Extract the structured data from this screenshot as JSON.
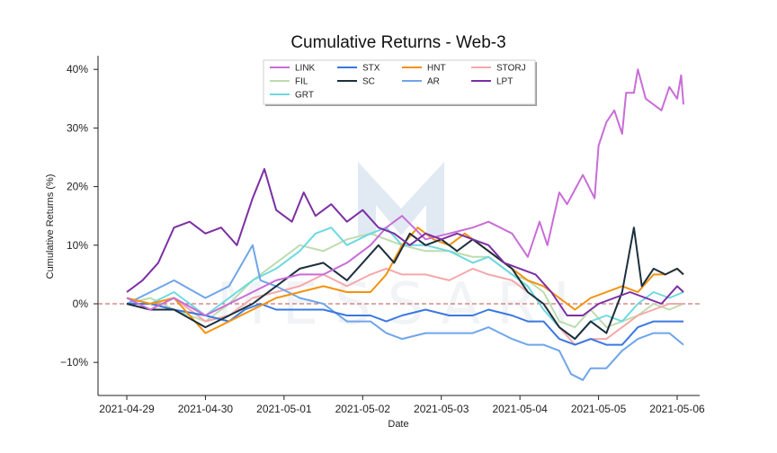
{
  "chart_data": {
    "type": "line",
    "title": "Cumulative Returns - Web-3",
    "xlabel": "Date",
    "ylabel": "Cumulative Returns (%)",
    "x_ticks": [
      "2021-04-29",
      "2021-04-30",
      "2021-05-01",
      "2021-05-02",
      "2021-05-03",
      "2021-05-04",
      "2021-05-05",
      "2021-05-06"
    ],
    "y_ticks": [
      -10,
      0,
      10,
      20,
      30,
      40
    ],
    "y_tick_labels": [
      "−10%",
      "0%",
      "10%",
      "20%",
      "30%",
      "40%"
    ],
    "xlim": [
      "2021-04-29",
      "2021-05-06"
    ],
    "ylim": [
      -15.5,
      43
    ],
    "reference_line": {
      "y": 0,
      "style": "dashed",
      "color": "#c0504d"
    },
    "grid": false,
    "legend_position": "top-center",
    "watermark": "MESSARI",
    "x_unit": "days",
    "series": [
      {
        "name": "LINK",
        "color": "#c86dd7",
        "points": [
          [
            0.0,
            1
          ],
          [
            0.3,
            -1
          ],
          [
            0.6,
            1
          ],
          [
            1.0,
            -2
          ],
          [
            1.3,
            0
          ],
          [
            1.6,
            2
          ],
          [
            1.9,
            4
          ],
          [
            2.2,
            5
          ],
          [
            2.5,
            5
          ],
          [
            2.8,
            7
          ],
          [
            3.1,
            10
          ],
          [
            3.3,
            13
          ],
          [
            3.5,
            15
          ],
          [
            3.8,
            11
          ],
          [
            4.1,
            12
          ],
          [
            4.4,
            13
          ],
          [
            4.6,
            14
          ],
          [
            4.9,
            12
          ],
          [
            5.1,
            8
          ],
          [
            5.25,
            14
          ],
          [
            5.35,
            10
          ],
          [
            5.5,
            19
          ],
          [
            5.6,
            17
          ],
          [
            5.8,
            22
          ],
          [
            5.95,
            18
          ],
          [
            6.0,
            27
          ],
          [
            6.1,
            31
          ],
          [
            6.2,
            33
          ],
          [
            6.3,
            29
          ],
          [
            6.35,
            36
          ],
          [
            6.45,
            36
          ],
          [
            6.5,
            40
          ],
          [
            6.6,
            35
          ],
          [
            6.8,
            33
          ],
          [
            6.9,
            37
          ],
          [
            7.0,
            35
          ],
          [
            7.05,
            39
          ],
          [
            7.08,
            34
          ]
        ]
      },
      {
        "name": "FIL",
        "color": "#bddcae",
        "points": [
          [
            0.0,
            0
          ],
          [
            0.3,
            1
          ],
          [
            0.6,
            -1
          ],
          [
            1.0,
            -3
          ],
          [
            1.3,
            0
          ],
          [
            1.6,
            4
          ],
          [
            1.9,
            7
          ],
          [
            2.2,
            10
          ],
          [
            2.5,
            9
          ],
          [
            2.8,
            11
          ],
          [
            3.1,
            12
          ],
          [
            3.3,
            11
          ],
          [
            3.5,
            10
          ],
          [
            3.8,
            9
          ],
          [
            4.1,
            9
          ],
          [
            4.4,
            8
          ],
          [
            4.6,
            8
          ],
          [
            4.9,
            5
          ],
          [
            5.1,
            4
          ],
          [
            5.3,
            2
          ],
          [
            5.5,
            -3
          ],
          [
            5.7,
            -4
          ],
          [
            5.9,
            -1
          ],
          [
            6.1,
            -4
          ],
          [
            6.3,
            -3
          ],
          [
            6.5,
            -2
          ],
          [
            6.7,
            0
          ],
          [
            6.9,
            -1
          ],
          [
            7.08,
            0
          ]
        ]
      },
      {
        "name": "GRT",
        "color": "#6dd9e0",
        "points": [
          [
            0.0,
            0
          ],
          [
            0.3,
            0
          ],
          [
            0.6,
            2
          ],
          [
            1.0,
            -2
          ],
          [
            1.3,
            1
          ],
          [
            1.6,
            4
          ],
          [
            1.9,
            6
          ],
          [
            2.2,
            9
          ],
          [
            2.4,
            12
          ],
          [
            2.6,
            13
          ],
          [
            2.8,
            10
          ],
          [
            3.1,
            12
          ],
          [
            3.3,
            13
          ],
          [
            3.5,
            10
          ],
          [
            3.8,
            10
          ],
          [
            4.1,
            9
          ],
          [
            4.4,
            7
          ],
          [
            4.6,
            8
          ],
          [
            4.9,
            5
          ],
          [
            5.1,
            3
          ],
          [
            5.3,
            -1
          ],
          [
            5.5,
            -4
          ],
          [
            5.7,
            -6
          ],
          [
            5.9,
            -3
          ],
          [
            6.1,
            -2
          ],
          [
            6.3,
            -3
          ],
          [
            6.5,
            0
          ],
          [
            6.7,
            2
          ],
          [
            6.9,
            1
          ],
          [
            7.08,
            2
          ]
        ]
      },
      {
        "name": "STX",
        "color": "#3a78e0",
        "points": [
          [
            0.0,
            0
          ],
          [
            0.3,
            0
          ],
          [
            0.6,
            -1
          ],
          [
            1.0,
            -2
          ],
          [
            1.3,
            -3
          ],
          [
            1.5,
            -1
          ],
          [
            1.7,
            0
          ],
          [
            1.9,
            -1
          ],
          [
            2.2,
            -1
          ],
          [
            2.5,
            -1
          ],
          [
            2.8,
            -2
          ],
          [
            3.1,
            -2
          ],
          [
            3.3,
            -3
          ],
          [
            3.5,
            -2
          ],
          [
            3.8,
            -1
          ],
          [
            4.1,
            -2
          ],
          [
            4.4,
            -2
          ],
          [
            4.6,
            -1
          ],
          [
            4.9,
            -2
          ],
          [
            5.1,
            -3
          ],
          [
            5.3,
            -3
          ],
          [
            5.5,
            -6
          ],
          [
            5.7,
            -7
          ],
          [
            5.9,
            -6
          ],
          [
            6.1,
            -7
          ],
          [
            6.3,
            -7
          ],
          [
            6.5,
            -4
          ],
          [
            6.7,
            -3
          ],
          [
            6.9,
            -3
          ],
          [
            7.08,
            -3
          ]
        ]
      },
      {
        "name": "SC",
        "color": "#1c2f3d",
        "points": [
          [
            0.0,
            0
          ],
          [
            0.3,
            -1
          ],
          [
            0.6,
            -1
          ],
          [
            1.0,
            -4
          ],
          [
            1.3,
            -2
          ],
          [
            1.6,
            0
          ],
          [
            1.9,
            3
          ],
          [
            2.2,
            6
          ],
          [
            2.5,
            7
          ],
          [
            2.8,
            4
          ],
          [
            3.0,
            7
          ],
          [
            3.2,
            10
          ],
          [
            3.4,
            7
          ],
          [
            3.6,
            12
          ],
          [
            3.8,
            10
          ],
          [
            4.0,
            11
          ],
          [
            4.2,
            9
          ],
          [
            4.4,
            11
          ],
          [
            4.6,
            9
          ],
          [
            4.9,
            6
          ],
          [
            5.1,
            2
          ],
          [
            5.3,
            0
          ],
          [
            5.5,
            -4
          ],
          [
            5.7,
            -6
          ],
          [
            5.9,
            -3
          ],
          [
            6.1,
            -5
          ],
          [
            6.3,
            2
          ],
          [
            6.45,
            13
          ],
          [
            6.55,
            3
          ],
          [
            6.7,
            6
          ],
          [
            6.85,
            5
          ],
          [
            7.0,
            6
          ],
          [
            7.08,
            5
          ]
        ]
      },
      {
        "name": "AR",
        "color": "#6fa5ea",
        "points": [
          [
            0.0,
            0
          ],
          [
            0.3,
            2
          ],
          [
            0.6,
            4
          ],
          [
            1.0,
            1
          ],
          [
            1.3,
            3
          ],
          [
            1.6,
            10
          ],
          [
            1.7,
            4
          ],
          [
            1.9,
            3
          ],
          [
            2.2,
            1
          ],
          [
            2.5,
            0
          ],
          [
            2.8,
            -3
          ],
          [
            3.1,
            -3
          ],
          [
            3.3,
            -5
          ],
          [
            3.5,
            -6
          ],
          [
            3.8,
            -5
          ],
          [
            4.1,
            -5
          ],
          [
            4.4,
            -5
          ],
          [
            4.6,
            -4
          ],
          [
            4.9,
            -6
          ],
          [
            5.1,
            -7
          ],
          [
            5.3,
            -7
          ],
          [
            5.5,
            -8
          ],
          [
            5.65,
            -12
          ],
          [
            5.8,
            -13
          ],
          [
            5.9,
            -11
          ],
          [
            6.1,
            -11
          ],
          [
            6.3,
            -8
          ],
          [
            6.5,
            -6
          ],
          [
            6.7,
            -5
          ],
          [
            6.9,
            -5
          ],
          [
            7.08,
            -7
          ]
        ]
      },
      {
        "name": "HNT",
        "color": "#f3920f",
        "points": [
          [
            0.0,
            1
          ],
          [
            0.3,
            0
          ],
          [
            0.6,
            1
          ],
          [
            1.0,
            -5
          ],
          [
            1.3,
            -3
          ],
          [
            1.6,
            -1
          ],
          [
            1.9,
            1
          ],
          [
            2.2,
            2
          ],
          [
            2.5,
            3
          ],
          [
            2.8,
            2
          ],
          [
            3.1,
            2
          ],
          [
            3.3,
            5
          ],
          [
            3.5,
            10
          ],
          [
            3.7,
            13
          ],
          [
            3.9,
            11
          ],
          [
            4.1,
            10
          ],
          [
            4.3,
            12
          ],
          [
            4.5,
            10
          ],
          [
            4.7,
            8
          ],
          [
            4.9,
            6
          ],
          [
            5.1,
            4
          ],
          [
            5.3,
            3
          ],
          [
            5.5,
            1
          ],
          [
            5.7,
            -1
          ],
          [
            5.9,
            1
          ],
          [
            6.1,
            2
          ],
          [
            6.3,
            3
          ],
          [
            6.5,
            2
          ],
          [
            6.7,
            5
          ],
          [
            6.85,
            5
          ],
          [
            7.0,
            6
          ],
          [
            7.08,
            5
          ]
        ]
      },
      {
        "name": "STORJ",
        "color": "#f5a8aa",
        "points": [
          [
            0.0,
            0
          ],
          [
            0.3,
            -1
          ],
          [
            0.6,
            1
          ],
          [
            1.0,
            -3
          ],
          [
            1.3,
            -2
          ],
          [
            1.6,
            1
          ],
          [
            1.9,
            2
          ],
          [
            2.2,
            3
          ],
          [
            2.5,
            5
          ],
          [
            2.8,
            3
          ],
          [
            3.1,
            5
          ],
          [
            3.3,
            6
          ],
          [
            3.5,
            5
          ],
          [
            3.8,
            5
          ],
          [
            4.1,
            4
          ],
          [
            4.4,
            6
          ],
          [
            4.6,
            5
          ],
          [
            4.9,
            4
          ],
          [
            5.1,
            2
          ],
          [
            5.3,
            0
          ],
          [
            5.5,
            -4
          ],
          [
            5.7,
            -7
          ],
          [
            5.9,
            -6
          ],
          [
            6.1,
            -6
          ],
          [
            6.3,
            -4
          ],
          [
            6.5,
            -2
          ],
          [
            6.7,
            -1
          ],
          [
            6.9,
            0
          ],
          [
            7.08,
            0
          ]
        ]
      },
      {
        "name": "LPT",
        "color": "#7c2fa4",
        "points": [
          [
            0.0,
            2
          ],
          [
            0.2,
            4
          ],
          [
            0.4,
            7
          ],
          [
            0.6,
            13
          ],
          [
            0.8,
            14
          ],
          [
            1.0,
            12
          ],
          [
            1.2,
            13
          ],
          [
            1.4,
            10
          ],
          [
            1.6,
            18
          ],
          [
            1.75,
            23
          ],
          [
            1.9,
            16
          ],
          [
            2.1,
            14
          ],
          [
            2.25,
            19
          ],
          [
            2.4,
            15
          ],
          [
            2.6,
            17
          ],
          [
            2.8,
            14
          ],
          [
            3.0,
            16
          ],
          [
            3.2,
            13
          ],
          [
            3.4,
            12
          ],
          [
            3.6,
            10
          ],
          [
            3.8,
            12
          ],
          [
            4.0,
            11
          ],
          [
            4.2,
            12
          ],
          [
            4.4,
            11
          ],
          [
            4.6,
            10
          ],
          [
            4.8,
            7
          ],
          [
            5.0,
            6
          ],
          [
            5.2,
            5
          ],
          [
            5.4,
            2
          ],
          [
            5.6,
            -2
          ],
          [
            5.8,
            -2
          ],
          [
            6.0,
            0
          ],
          [
            6.2,
            1
          ],
          [
            6.4,
            2
          ],
          [
            6.6,
            1
          ],
          [
            6.8,
            0
          ],
          [
            7.0,
            3
          ],
          [
            7.08,
            2
          ]
        ]
      }
    ]
  }
}
